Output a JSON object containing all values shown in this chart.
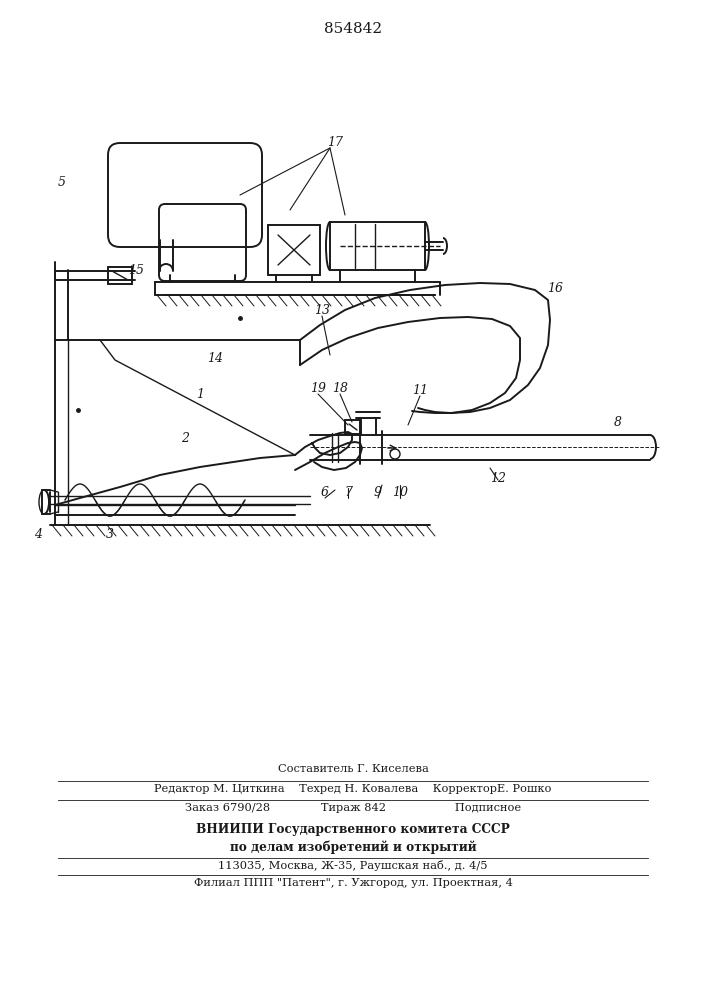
{
  "title": "854842",
  "title_fontsize": 11,
  "bg_color": "#ffffff",
  "line_color": "#1a1a1a",
  "footer": {
    "line1": "Составитель Г. Киселева",
    "line2": "Редактор М. Циткина    Техред Н. Ковалева    КорректорЕ. Рошко",
    "line3": "Заказ 6790/28              Тираж 842                   Подписное",
    "line4": "ВНИИПИ Государственного комитета СССР",
    "line5": "по делам изобретений и открытий",
    "line6": "113035, Москва, Ж-35, Раушская наб., д. 4/5",
    "line7": "Филиал ППП \"Патент\", г. Ужгород, ул. Проектная, 4"
  }
}
